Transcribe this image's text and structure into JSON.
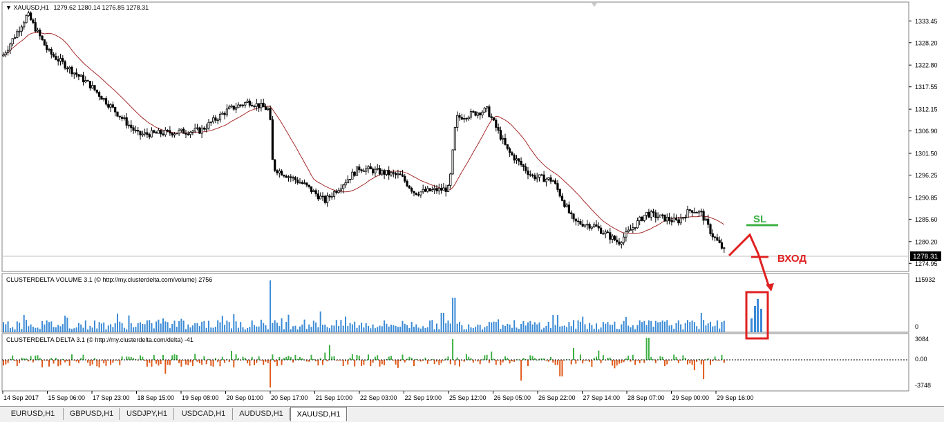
{
  "chart": {
    "symbol_title": "XAUUSD,H1",
    "ohlc_text": "1279.62 1280.14 1276.85 1278.31",
    "current_price": "1278.31",
    "price_ticks": [
      "1333.45",
      "1328.20",
      "1322.80",
      "1317.55",
      "1312.15",
      "1306.90",
      "1301.50",
      "1296.25",
      "1290.85",
      "1285.60",
      "1280.20",
      "1274.95"
    ],
    "price_range": [
      1273.0,
      1338.0
    ],
    "time_labels": [
      "14 Sep 2017",
      "15 Sep 06:00",
      "17 Sep 23:00",
      "18 Sep 15:00",
      "19 Sep 08:00",
      "20 Sep 01:00",
      "20 Sep 17:00",
      "21 Sep 10:00",
      "22 Sep 03:00",
      "22 Sep 19:00",
      "25 Sep 12:00",
      "26 Sep 05:00",
      "26 Sep 22:00",
      "27 Sep 14:00",
      "28 Sep 07:00",
      "29 Sep 00:00",
      "29 Sep 16:00"
    ],
    "ma_color": "#a52a2a",
    "annotations": {
      "sl_label": "SL",
      "entry_label": "ВХОД",
      "sl_color": "#3cb043",
      "entry_color": "#e02020"
    }
  },
  "volume_indicator": {
    "title": "CLUSTERDELTA VOLUME 3.1 (© http://my.clusterdelta.com/volume) 2756",
    "scale_max": "115932",
    "scale_min": "0",
    "bar_color": "#3a8ad6"
  },
  "delta_indicator": {
    "title": "CLUSTERDELTA DELTA 3.1 (© http://my.clusterdelta.com/delta) -41",
    "scale_max": "3084",
    "scale_zero": "0.00",
    "scale_min": "-3748",
    "pos_color": "#3cb043",
    "neg_color": "#e05a1a"
  },
  "tabs": [
    {
      "label": "EURUSD,H1",
      "active": false
    },
    {
      "label": "GBPUSD,H1",
      "active": false
    },
    {
      "label": "USDJPY,H1",
      "active": false
    },
    {
      "label": "USDCAD,H1",
      "active": false
    },
    {
      "label": "AUDUSD,H1",
      "active": false
    },
    {
      "label": "XAUUSD,H1",
      "active": true
    }
  ]
}
